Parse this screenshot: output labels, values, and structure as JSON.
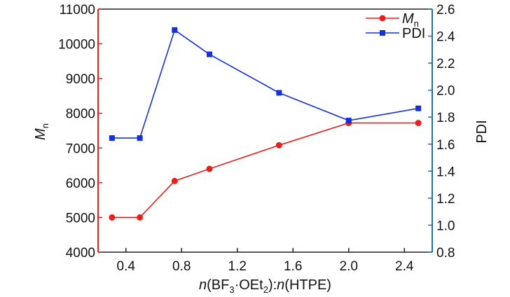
{
  "chart_data": {
    "type": "line",
    "x": [
      0.3,
      0.5,
      0.75,
      1.0,
      1.5,
      2.0,
      2.5
    ],
    "xlim": [
      0.2,
      2.6
    ],
    "xticks": [
      "0.4",
      "0.8",
      "1.2",
      "1.6",
      "2.0",
      "2.4"
    ],
    "xlabel": {
      "prefix": "n",
      "paren_open": "(BF",
      "sub": "3",
      "mid": "·OEt",
      "sub2": "2",
      "paren_close": "):",
      "n2": "n",
      "tail": "(HTPE)"
    },
    "y_left": {
      "label_main": "M",
      "label_sub": "n",
      "ylim": [
        4000,
        11000
      ],
      "ticks": [
        "4000",
        "5000",
        "6000",
        "7000",
        "8000",
        "9000",
        "10000",
        "11000"
      ],
      "color": "#e8201c"
    },
    "y_right": {
      "label": "PDI",
      "ylim": [
        0.8,
        2.6
      ],
      "ticks": [
        "0.8",
        "1.0",
        "1.2",
        "1.4",
        "1.6",
        "1.8",
        "2.0",
        "2.2",
        "2.4",
        "2.6"
      ],
      "color": "#1f6fa8"
    },
    "series": [
      {
        "name_main": "M",
        "name_sub": "n",
        "axis": "left",
        "color": "#e8201c",
        "marker": "circle",
        "values": [
          5000,
          5000,
          6050,
          6400,
          7080,
          7720,
          7720
        ]
      },
      {
        "name": "PDI",
        "axis": "right",
        "color": "#1432d6",
        "marker": "square",
        "values": [
          1.645,
          1.645,
          2.445,
          2.265,
          1.98,
          1.775,
          1.865
        ]
      }
    ],
    "legend": "top-right"
  }
}
